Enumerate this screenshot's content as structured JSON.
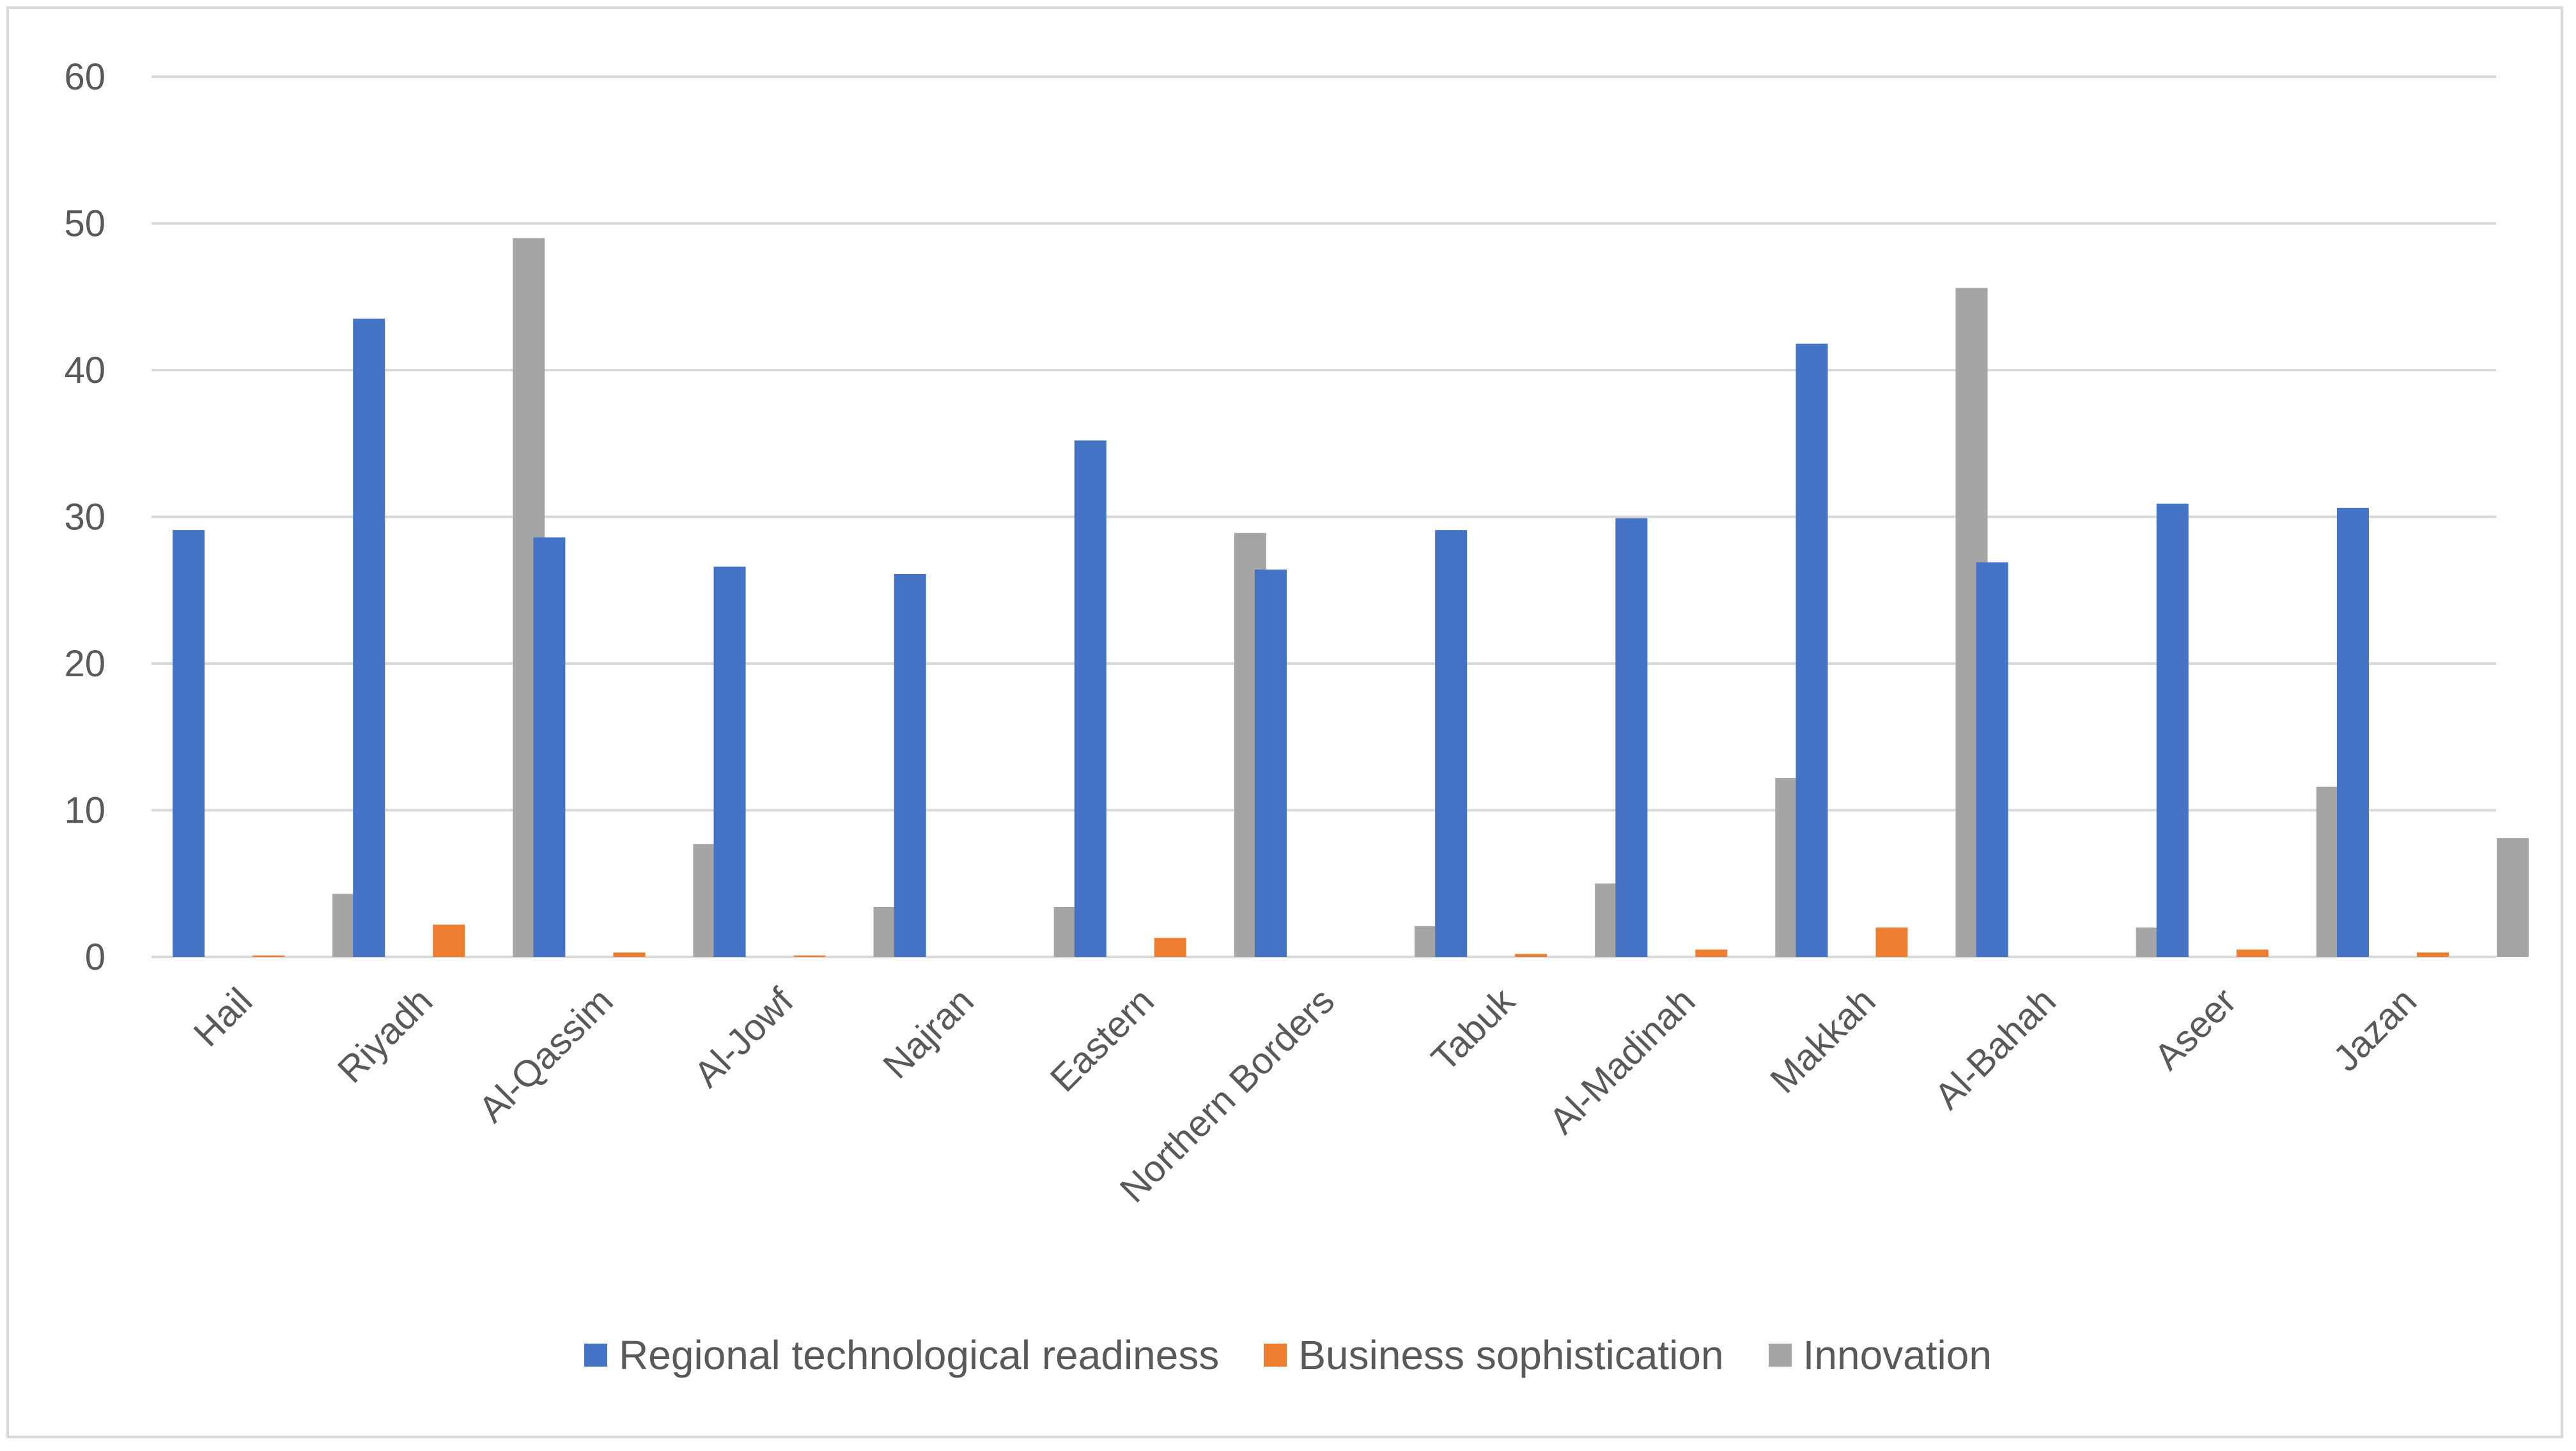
{
  "chart_data": {
    "type": "bar",
    "title": "",
    "xlabel": "",
    "ylabel": "",
    "ylim": [
      0,
      60
    ],
    "yticks": [
      "0",
      "10",
      "20",
      "30",
      "40",
      "50",
      "60"
    ],
    "grid": true,
    "legend_position": "bottom",
    "categories": [
      "Hail",
      "Riyadh",
      "Al-Qassim",
      "Al-Jowf",
      "Najran",
      "Eastern",
      "Northern Borders",
      "Tabuk",
      "Al-Madinah",
      "Makkah",
      "Al-Bahah",
      "Aseer",
      "Jazan"
    ],
    "series": [
      {
        "name": "Regional technological readiness",
        "color": "#4472c4",
        "values": [
          29.1,
          43.5,
          28.6,
          26.6,
          26.1,
          35.2,
          26.4,
          29.1,
          29.9,
          41.8,
          26.9,
          30.9,
          30.6
        ]
      },
      {
        "name": "Business sophistication",
        "color": "#ed7d31",
        "values": [
          0.1,
          2.2,
          0.3,
          0.1,
          0.0,
          1.3,
          0.0,
          0.2,
          0.5,
          2.0,
          0.0,
          0.5,
          0.3
        ]
      },
      {
        "name": "Innovation",
        "color": "#a5a5a5",
        "values": [
          4.3,
          49.0,
          7.7,
          3.4,
          3.4,
          28.9,
          2.1,
          5.0,
          12.2,
          45.6,
          2.0,
          11.6,
          8.1
        ]
      }
    ]
  }
}
